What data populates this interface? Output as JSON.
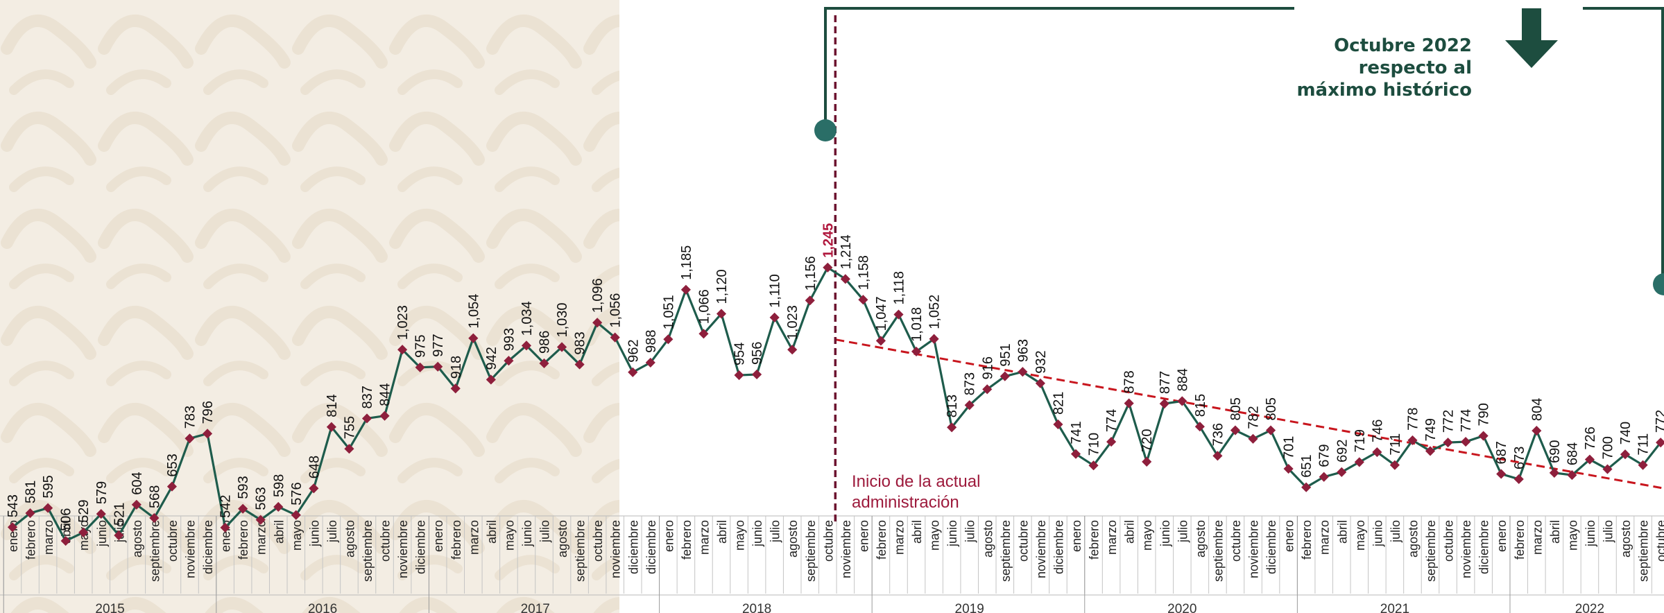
{
  "colors": {
    "background_band": "#f3ede3",
    "line": "#1e5c4c",
    "marker": "#8e1f3c",
    "trend": "#c8161e",
    "admin_line": "#6d1430",
    "callout": "#1d4d3f",
    "peak_label": "#b0163c"
  },
  "annotations": {
    "admin_start_line1": "Inicio de la actual",
    "admin_start_line2": "administración",
    "callout_line1": "Octubre 2022",
    "callout_line2": "respecto al",
    "callout_line3": "máximo histórico",
    "callout_icon": "arrow-down-icon"
  },
  "chart_data": {
    "type": "line",
    "title": "",
    "xlabel": "",
    "ylabel": "",
    "ylim": [
      350,
      1300
    ],
    "grid": false,
    "years": [
      "2015",
      "2016",
      "2017",
      "2018",
      "2019",
      "2020",
      "2021",
      "2022"
    ],
    "months": [
      "enero",
      "febrero",
      "marzo",
      "abril",
      "mayo",
      "junio",
      "julio",
      "agosto",
      "septiembre",
      "octubre",
      "noviembre",
      "diciembre"
    ],
    "values": [
      543,
      581,
      595,
      506,
      529,
      579,
      521,
      604,
      568,
      653,
      783,
      796,
      542,
      593,
      563,
      598,
      576,
      648,
      814,
      755,
      837,
      844,
      1023,
      975,
      977,
      918,
      1054,
      942,
      993,
      1034,
      986,
      1030,
      983,
      1096,
      1056,
      962,
      988,
      1051,
      1185,
      1066,
      1120,
      954,
      956,
      1110,
      1023,
      1156,
      1245,
      1214,
      1158,
      1047,
      1118,
      1018,
      1052,
      813,
      873,
      916,
      951,
      963,
      932,
      821,
      741,
      710,
      774,
      878,
      720,
      877,
      884,
      815,
      736,
      805,
      782,
      805,
      701,
      651,
      679,
      692,
      719,
      746,
      711,
      778,
      749,
      772,
      774,
      790,
      687,
      673,
      804,
      690,
      684,
      726,
      700,
      740,
      711,
      772
    ],
    "value_labels": [
      "543",
      "581",
      "595",
      "506",
      "529",
      "579",
      "521",
      "604",
      "568",
      "653",
      "783",
      "796",
      "542",
      "593",
      "563",
      "598",
      "576",
      "648",
      "814",
      "755",
      "837",
      "844",
      "1,023",
      "975",
      "977",
      "918",
      "1,054",
      "942",
      "993",
      "1,034",
      "986",
      "1,030",
      "983",
      "1,096",
      "1,056",
      "962",
      "988",
      "1,051",
      "1,185",
      "1,066",
      "1,120",
      "954",
      "956",
      "1,110",
      "1,023",
      "1,156",
      "1,245",
      "1,214",
      "1,158",
      "1,047",
      "1,118",
      "1,018",
      "1,052",
      "813",
      "873",
      "916",
      "951",
      "963",
      "932",
      "821",
      "741",
      "710",
      "774",
      "878",
      "720",
      "877",
      "884",
      "815",
      "736",
      "805",
      "782",
      "805",
      "701",
      "651",
      "679",
      "692",
      "719",
      "746",
      "711",
      "778",
      "749",
      "772",
      "774",
      "790",
      "687",
      "673",
      "804",
      "690",
      "684",
      "726",
      "700",
      "740",
      "711",
      "772"
    ],
    "peak_label": "1,245",
    "trend": {
      "from": 1050,
      "to": 648
    }
  }
}
